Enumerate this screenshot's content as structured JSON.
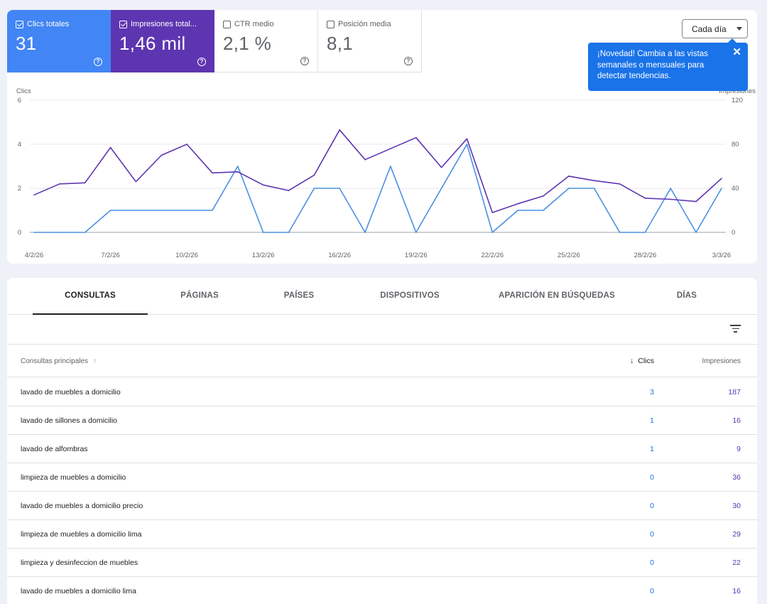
{
  "metrics": {
    "clicks": {
      "label": "Clics totales",
      "value": "31",
      "checked": true,
      "color": "#4285f4"
    },
    "impressions": {
      "label": "Impresiones total...",
      "value": "1,46 mil",
      "checked": true,
      "color": "#5e35b1"
    },
    "ctr": {
      "label": "CTR medio",
      "value": "2,1 %",
      "checked": false
    },
    "position": {
      "label": "Posición media",
      "value": "8,1",
      "checked": false
    },
    "help_icon": "help-circle-icon"
  },
  "period_select": {
    "label": "Cada día"
  },
  "tooltip": {
    "text": "¡Novedad! Cambia a las vistas semanales o mensuales para detectar tendencias.",
    "close": "✕"
  },
  "chart_data": {
    "type": "line",
    "x": [
      "4/2/26",
      "5/2/26",
      "6/2/26",
      "7/2/26",
      "8/2/26",
      "9/2/26",
      "10/2/26",
      "11/2/26",
      "12/2/26",
      "13/2/26",
      "14/2/26",
      "15/2/26",
      "16/2/26",
      "17/2/26",
      "18/2/26",
      "19/2/26",
      "20/2/26",
      "21/2/26",
      "22/2/26",
      "23/2/26",
      "24/2/26",
      "25/2/26",
      "26/2/26",
      "27/2/26",
      "28/2/26",
      "1/3/26",
      "2/3/26",
      "3/3/26"
    ],
    "x_tick_labels": [
      "4/2/26",
      "7/2/26",
      "10/2/26",
      "13/2/26",
      "16/2/26",
      "19/2/26",
      "22/2/26",
      "25/2/26",
      "28/2/26",
      "3/3/26"
    ],
    "series": [
      {
        "name": "Clics",
        "axis": "left",
        "color": "#4a90e2",
        "values": [
          0,
          0,
          0,
          1,
          1,
          1,
          1,
          1,
          3,
          0,
          0,
          2,
          2,
          0,
          3,
          0,
          2,
          4,
          0,
          1,
          1,
          2,
          2,
          0,
          0,
          2,
          0,
          2
        ]
      },
      {
        "name": "Impresiones",
        "axis": "right",
        "color": "#5e35b1",
        "values": [
          34,
          44,
          45,
          77,
          46,
          70,
          80,
          54,
          55,
          43,
          38,
          52,
          93,
          66,
          76,
          86,
          59,
          85,
          18,
          26,
          33,
          51,
          47,
          44,
          31,
          30,
          28,
          49
        ]
      }
    ],
    "ylabel_left": "Clics",
    "ylim_left": [
      0,
      6
    ],
    "yticks_left": [
      "0",
      "2",
      "4",
      "6"
    ],
    "ylabel_right": "Impresiones",
    "ylim_right": [
      0,
      120
    ],
    "yticks_right": [
      "0",
      "40",
      "80",
      "120"
    ],
    "grid": true
  },
  "tabs": [
    "CONSULTAS",
    "PÁGINAS",
    "PAÍSES",
    "DISPOSITIVOS",
    "APARICIÓN EN BÚSQUEDAS",
    "DÍAS"
  ],
  "active_tab": "CONSULTAS",
  "filter_icon": "filter-list-icon",
  "table": {
    "headers": {
      "query": "Consultas principales",
      "query_sort_icon": "arrow-up-icon",
      "clicks": "Clics",
      "clicks_sort_icon": "arrow-down-icon",
      "impressions": "Impresiones"
    },
    "rows": [
      {
        "query": "lavado de muebles a domicilio",
        "clicks": "3",
        "impressions": "187"
      },
      {
        "query": "lavado de sillones a domicilio",
        "clicks": "1",
        "impressions": "16"
      },
      {
        "query": "lavado de alfombras",
        "clicks": "1",
        "impressions": "9"
      },
      {
        "query": "limpieza de muebles a domicilio",
        "clicks": "0",
        "impressions": "36"
      },
      {
        "query": "lavado de muebles a domicilio precio",
        "clicks": "0",
        "impressions": "30"
      },
      {
        "query": "limpieza de muebles a domicilio lima",
        "clicks": "0",
        "impressions": "29"
      },
      {
        "query": "limpieza y desinfeccion de muebles",
        "clicks": "0",
        "impressions": "22"
      },
      {
        "query": "lavado de muebles a domicilio lima",
        "clicks": "0",
        "impressions": "16"
      }
    ]
  }
}
